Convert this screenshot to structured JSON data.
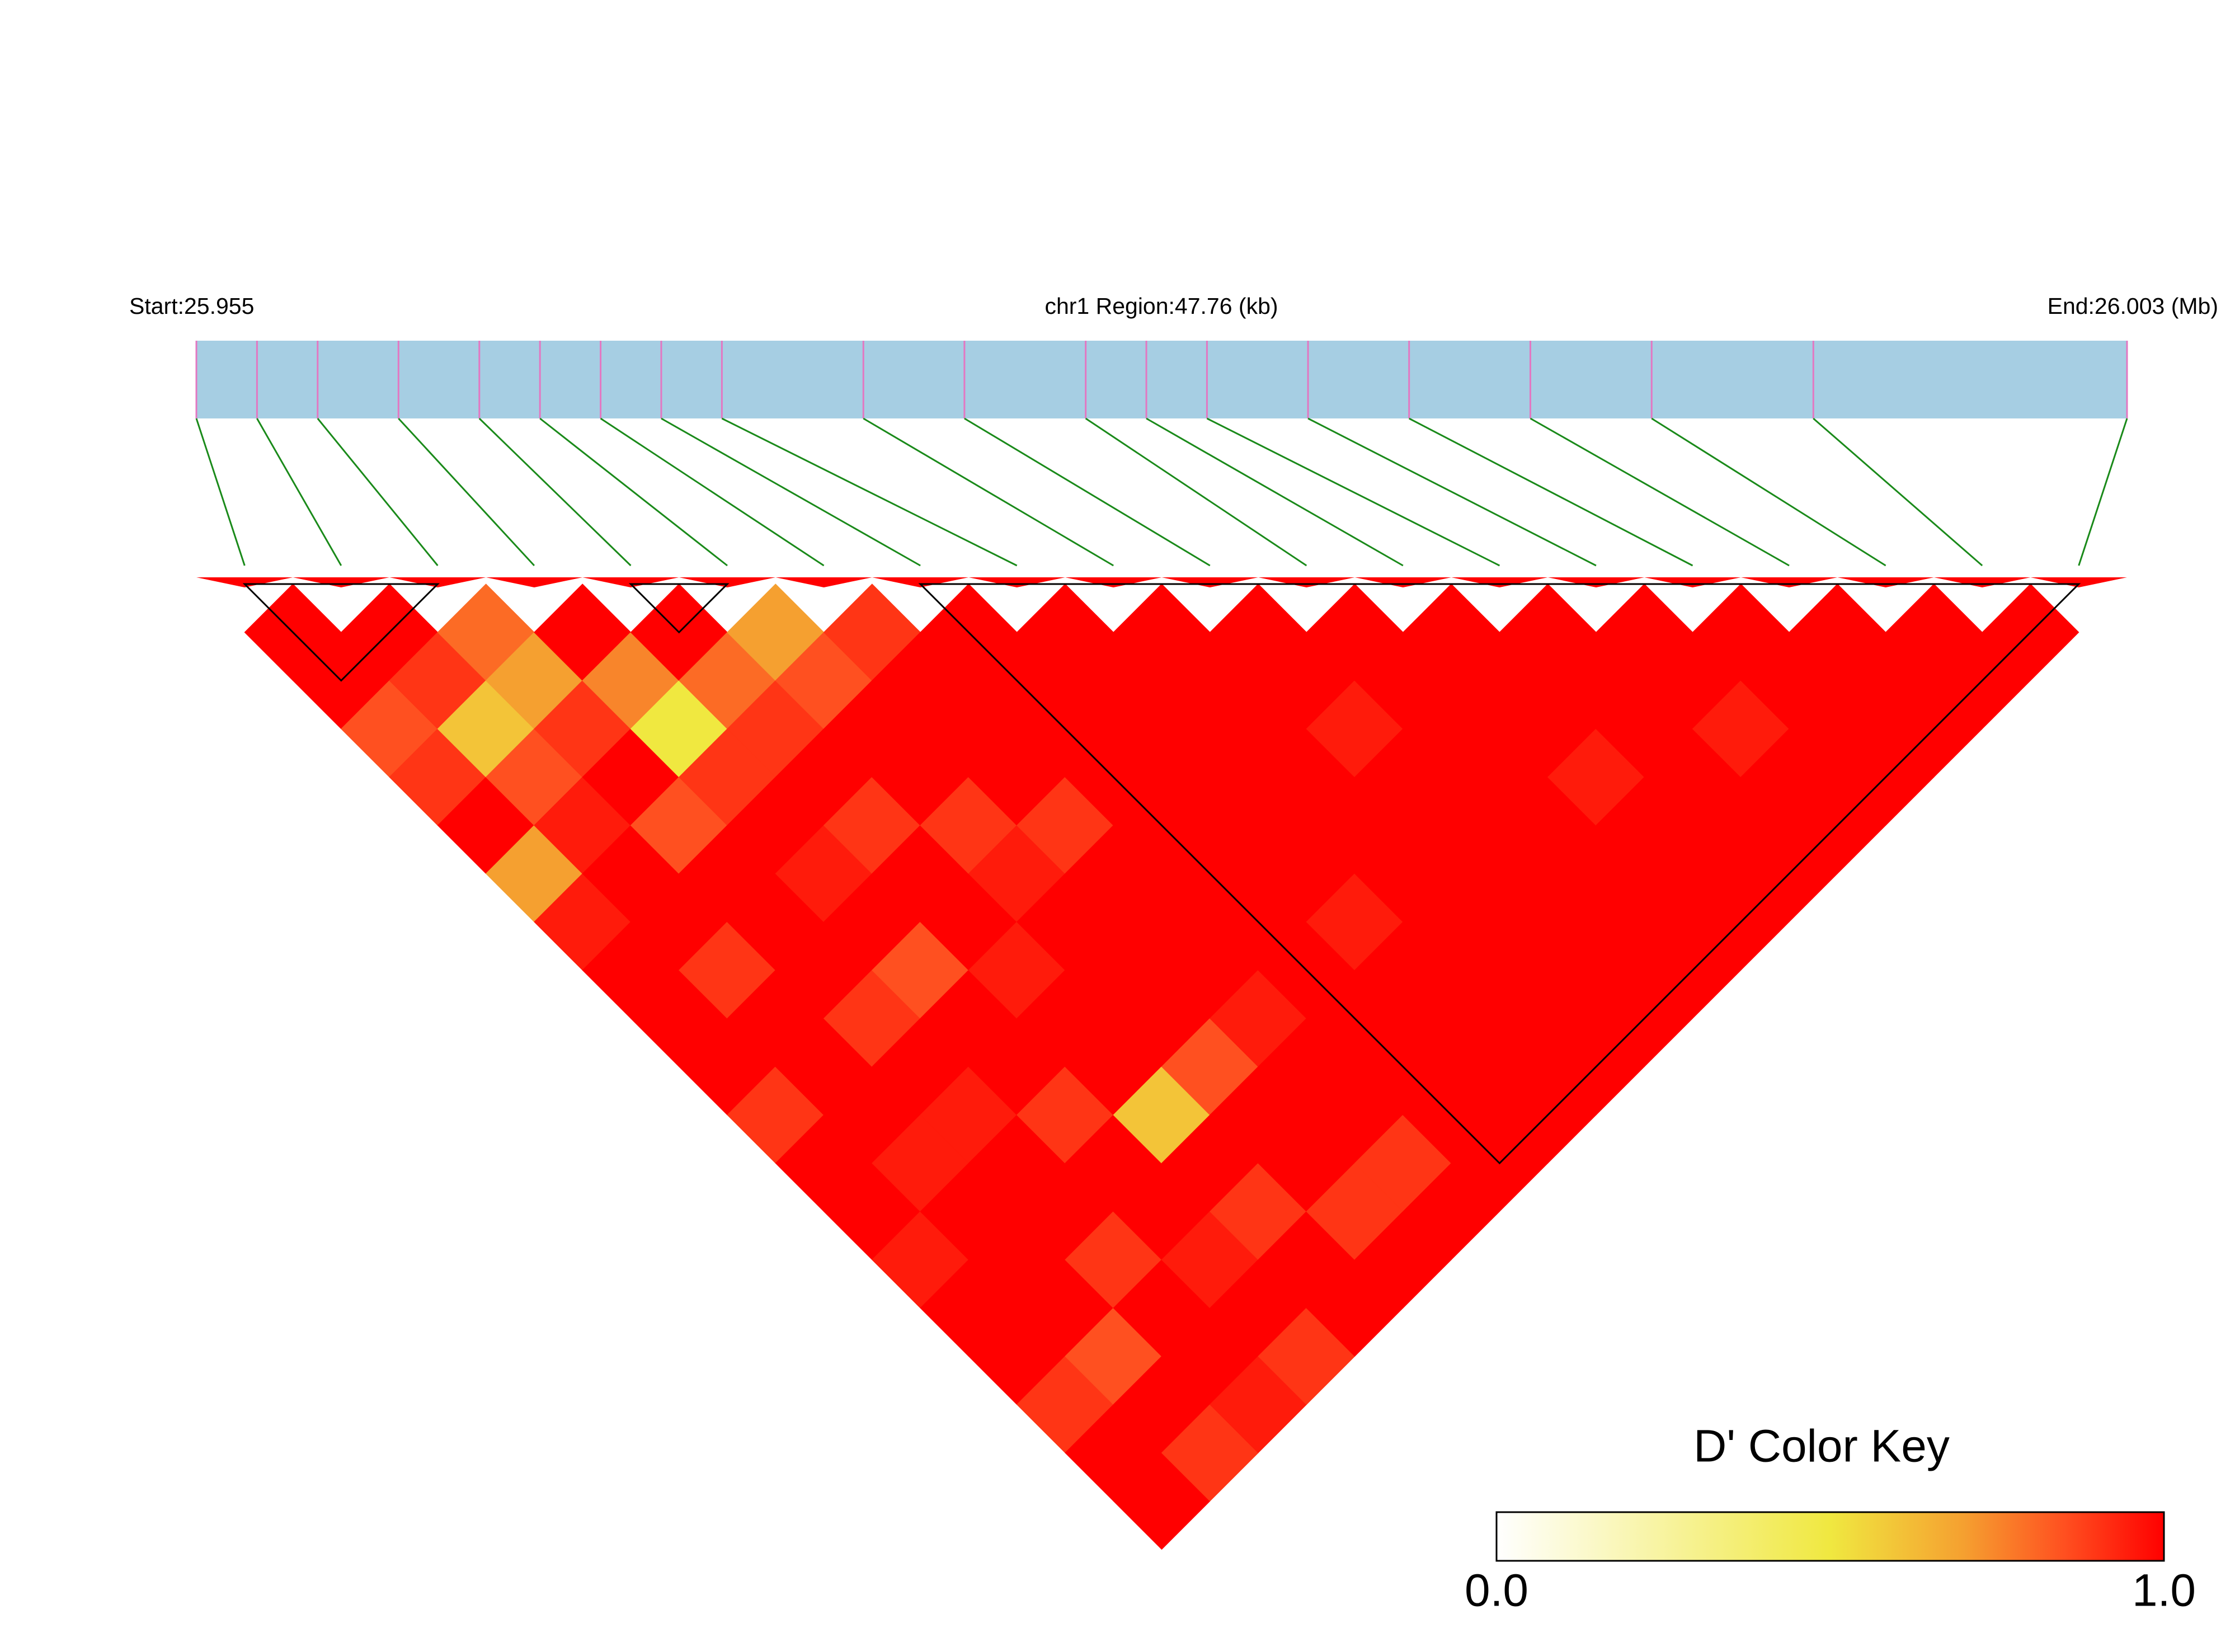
{
  "chart_data": {
    "type": "ld_heatmap",
    "start_label": "Start:25.955",
    "region_label": "chr1 Region:47.76 (kb)",
    "end_label": "End:26.003 (Mb)",
    "key_title": "D' Color Key",
    "key_ticks": [
      {
        "value": 0,
        "label": "0.0"
      },
      {
        "value": 1,
        "label": "1.0"
      }
    ],
    "xlim": [
      0,
      47.76
    ],
    "snp_positions": [
      0,
      1.5,
      3,
      5,
      7,
      8.5,
      10,
      11.5,
      13,
      16.5,
      19,
      22,
      23.5,
      25,
      27.5,
      30,
      33,
      36,
      40,
      47.76
    ],
    "dprime": [
      [
        1,
        1,
        0.85,
        0.9,
        1,
        0.7,
        0.95,
        1,
        1,
        1,
        0.9,
        1,
        1,
        0.95,
        1,
        1,
        0.9,
        1,
        1
      ],
      [
        1,
        0.9,
        0.6,
        0.85,
        0.95,
        1,
        1,
        0.9,
        1,
        1,
        1,
        0.95,
        1,
        1,
        1,
        0.85,
        1,
        0.9
      ],
      [
        0.8,
        0.7,
        0.9,
        1,
        0.85,
        1,
        1,
        1,
        0.9,
        1,
        0.95,
        1,
        1,
        0.9,
        1,
        1,
        0.95
      ],
      [
        1,
        0.75,
        0.5,
        0.9,
        1,
        0.95,
        1,
        0.85,
        1,
        1,
        0.9,
        1,
        1,
        0.95,
        1,
        0.9
      ],
      [
        1,
        0.8,
        0.9,
        1,
        0.9,
        1,
        1,
        0.95,
        1,
        1,
        0.6,
        1,
        0.9,
        1,
        1
      ],
      [
        0.7,
        0.85,
        1,
        1,
        0.9,
        0.95,
        1,
        1,
        1,
        0.85,
        1,
        1,
        0.9,
        1
      ],
      [
        0.9,
        1,
        1,
        1,
        0.9,
        1,
        1,
        1,
        0.95,
        1,
        1,
        0.9,
        1
      ],
      [
        1,
        1,
        1,
        1,
        1,
        1,
        1,
        1,
        1,
        1,
        1,
        1
      ],
      [
        1,
        1,
        1,
        1,
        1,
        1,
        0.95,
        1,
        1,
        1,
        1
      ],
      [
        1,
        1,
        1,
        1,
        1,
        1,
        1,
        1,
        1,
        1
      ],
      [
        1,
        1,
        0.95,
        1,
        1,
        1,
        1,
        1,
        1
      ],
      [
        1,
        1,
        1,
        1,
        1,
        1,
        1,
        1
      ],
      [
        1,
        1,
        1,
        0.95,
        1,
        1,
        1
      ],
      [
        1,
        1,
        1,
        1,
        1,
        1
      ],
      [
        1,
        1,
        0.95,
        1,
        1
      ],
      [
        1,
        1,
        1,
        1
      ],
      [
        1,
        1,
        1
      ],
      [
        1,
        1
      ],
      [
        1
      ]
    ],
    "blocks": [
      [
        0,
        2
      ],
      [
        4,
        5
      ],
      [
        7,
        19
      ]
    ]
  }
}
